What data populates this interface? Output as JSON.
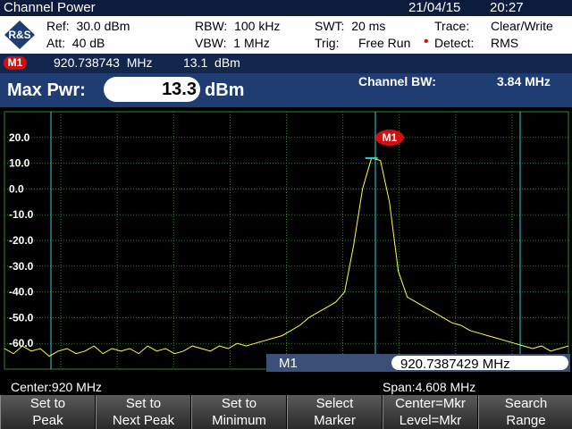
{
  "header": {
    "title": "Channel Power",
    "date": "21/04/15",
    "time": "20:27"
  },
  "settings": {
    "ref": "Ref:  30.0 dBm",
    "att": "Att:  40 dB",
    "rbw": "RBW:  100 kHz",
    "vbw": "VBW:  1 MHz",
    "swt": "SWT:  20 ms",
    "trig": "Trig:",
    "trig_value": "Free Run",
    "trace": "Trace:",
    "trace_value": "Clear/Write",
    "detect": "Detect:",
    "detect_value": "RMS"
  },
  "marker": {
    "name": "M1",
    "frequency": "920.738743  MHz",
    "level": "13.1  dBm"
  },
  "measurement": {
    "label": "Max Pwr:",
    "value": "13.3",
    "unit": "dBm",
    "bw_label": "Channel BW:",
    "bw_value": "3.84 MHz"
  },
  "plot": {
    "ylim": [
      -70,
      30
    ],
    "yticks": [
      {
        "value": 20,
        "label": "20.0"
      },
      {
        "value": 10,
        "label": "10.0"
      },
      {
        "value": 0,
        "label": "0.0"
      },
      {
        "value": -10,
        "label": "-10.0"
      },
      {
        "value": -20,
        "label": "-20.0"
      },
      {
        "value": -30,
        "label": "-30.0"
      },
      {
        "value": -40,
        "label": "-40.0"
      },
      {
        "value": -50,
        "label": "-50.0"
      },
      {
        "value": -60,
        "label": "-60.0"
      }
    ],
    "color": "#ffff40",
    "values": [
      -62,
      -64,
      -61,
      -63,
      -62,
      -65,
      -63,
      -62,
      -64,
      -63,
      -61,
      -64,
      -62,
      -63,
      -62,
      -64,
      -61,
      -63,
      -62,
      -64,
      -63,
      -61,
      -62,
      -63,
      -61,
      -62,
      -60,
      -61,
      -60,
      -59,
      -58,
      -57,
      -55,
      -53,
      -50,
      -48,
      -46,
      -44,
      -40,
      -22,
      0,
      12,
      11,
      -5,
      -32,
      -42,
      -44,
      -46,
      -48,
      -50,
      -52,
      -53,
      -55,
      -56,
      -57,
      -58,
      -59,
      -60,
      -61,
      -62,
      -61,
      -63,
      -62,
      -61
    ],
    "marker_label": "M1",
    "readout_label": "M1",
    "readout_value": "920.7387429 MHz"
  },
  "footer": {
    "center": "Center:920 MHz",
    "span": "Span:4.608 MHz"
  },
  "softkeys": [
    [
      "Set to",
      "Peak"
    ],
    [
      "Set to",
      "Next Peak"
    ],
    [
      "Set to",
      "Minimum"
    ],
    [
      "Select",
      "Marker"
    ],
    [
      "Center=Mkr",
      "Level=Mkr"
    ],
    [
      "Search",
      "Range"
    ]
  ]
}
